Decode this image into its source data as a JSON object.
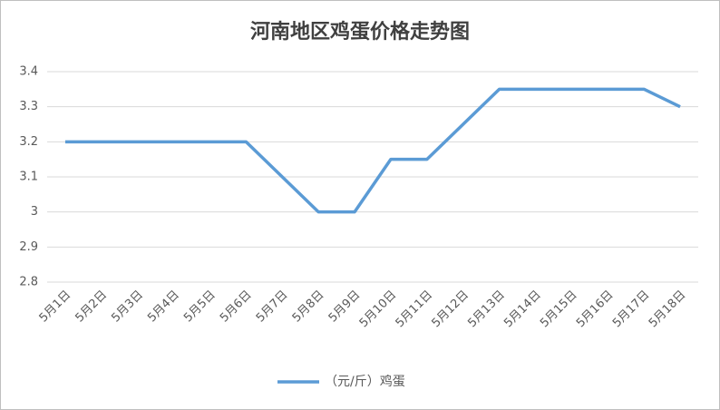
{
  "chart_data": {
    "type": "line",
    "title": "河南地区鸡蛋价格走势图",
    "categories": [
      "5月1日",
      "5月2日",
      "5月3日",
      "5月4日",
      "5月5日",
      "5月6日",
      "5月7日",
      "5月8日",
      "5月9日",
      "5月10日",
      "5月11日",
      "5月12日",
      "5月13日",
      "5月14日",
      "5月15日",
      "5月16日",
      "5月17日",
      "5月18日"
    ],
    "series": [
      {
        "name": "（元/斤）鸡蛋",
        "color": "#5b9bd5",
        "values": [
          3.2,
          3.2,
          3.2,
          3.2,
          3.2,
          3.2,
          3.1,
          3.0,
          3.0,
          3.15,
          3.15,
          3.25,
          3.35,
          3.35,
          3.35,
          3.35,
          3.35,
          3.3
        ]
      }
    ],
    "ylim": [
      2.8,
      3.4
    ],
    "yticks": [
      2.8,
      2.9,
      3,
      3.1,
      3.2,
      3.3,
      3.4
    ],
    "grid": true,
    "legend": "bottom"
  }
}
